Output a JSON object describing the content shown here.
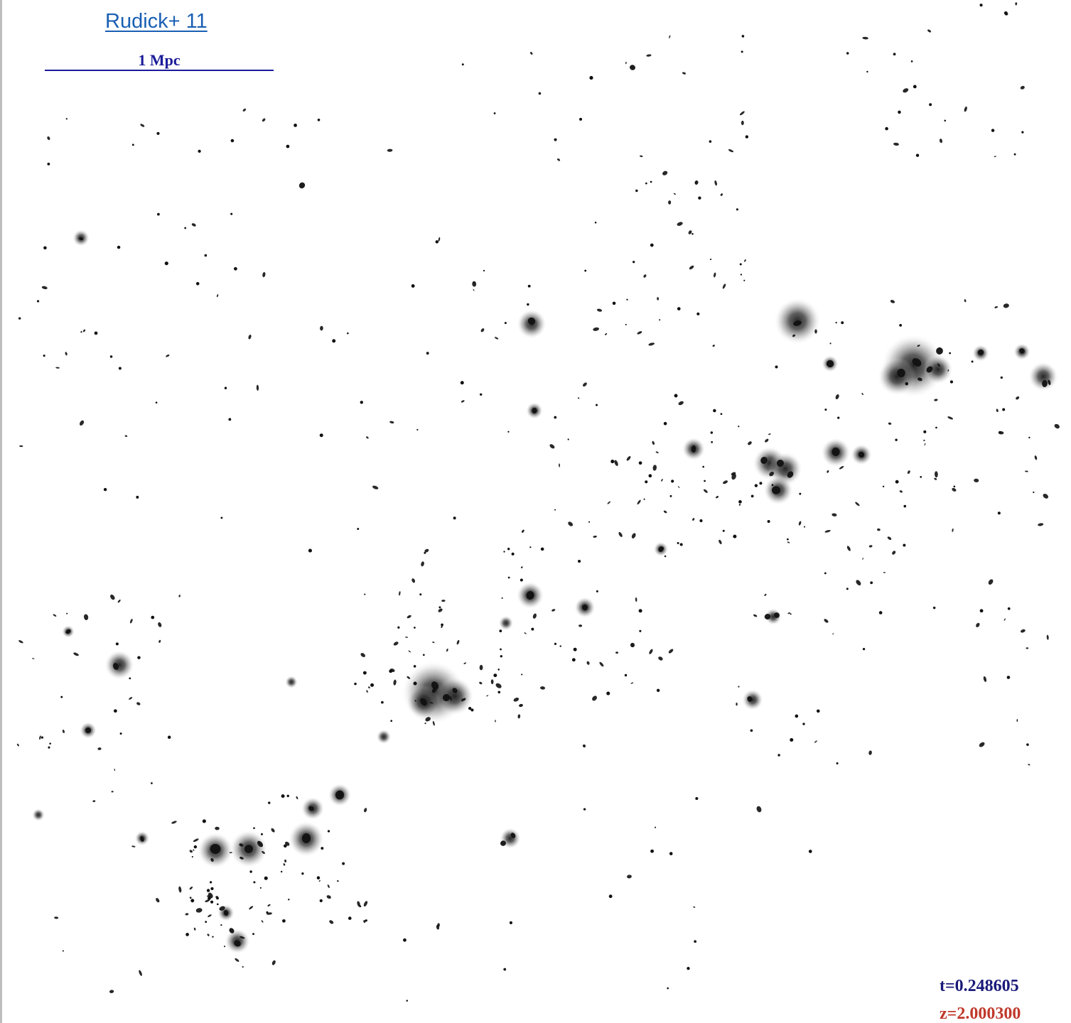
{
  "reference_link": "Rudick+ 11",
  "scale_bar": {
    "label": "1 Mpc"
  },
  "readouts": {
    "time": "t=0.248605",
    "redshift": "z=2.000300"
  },
  "colors": {
    "link": "#1a5fb4",
    "scale": "#1a1a9a",
    "time": "#1a1a7a",
    "redshift": "#c0392b",
    "galaxy": "#111111",
    "background": "#ffffff"
  }
}
